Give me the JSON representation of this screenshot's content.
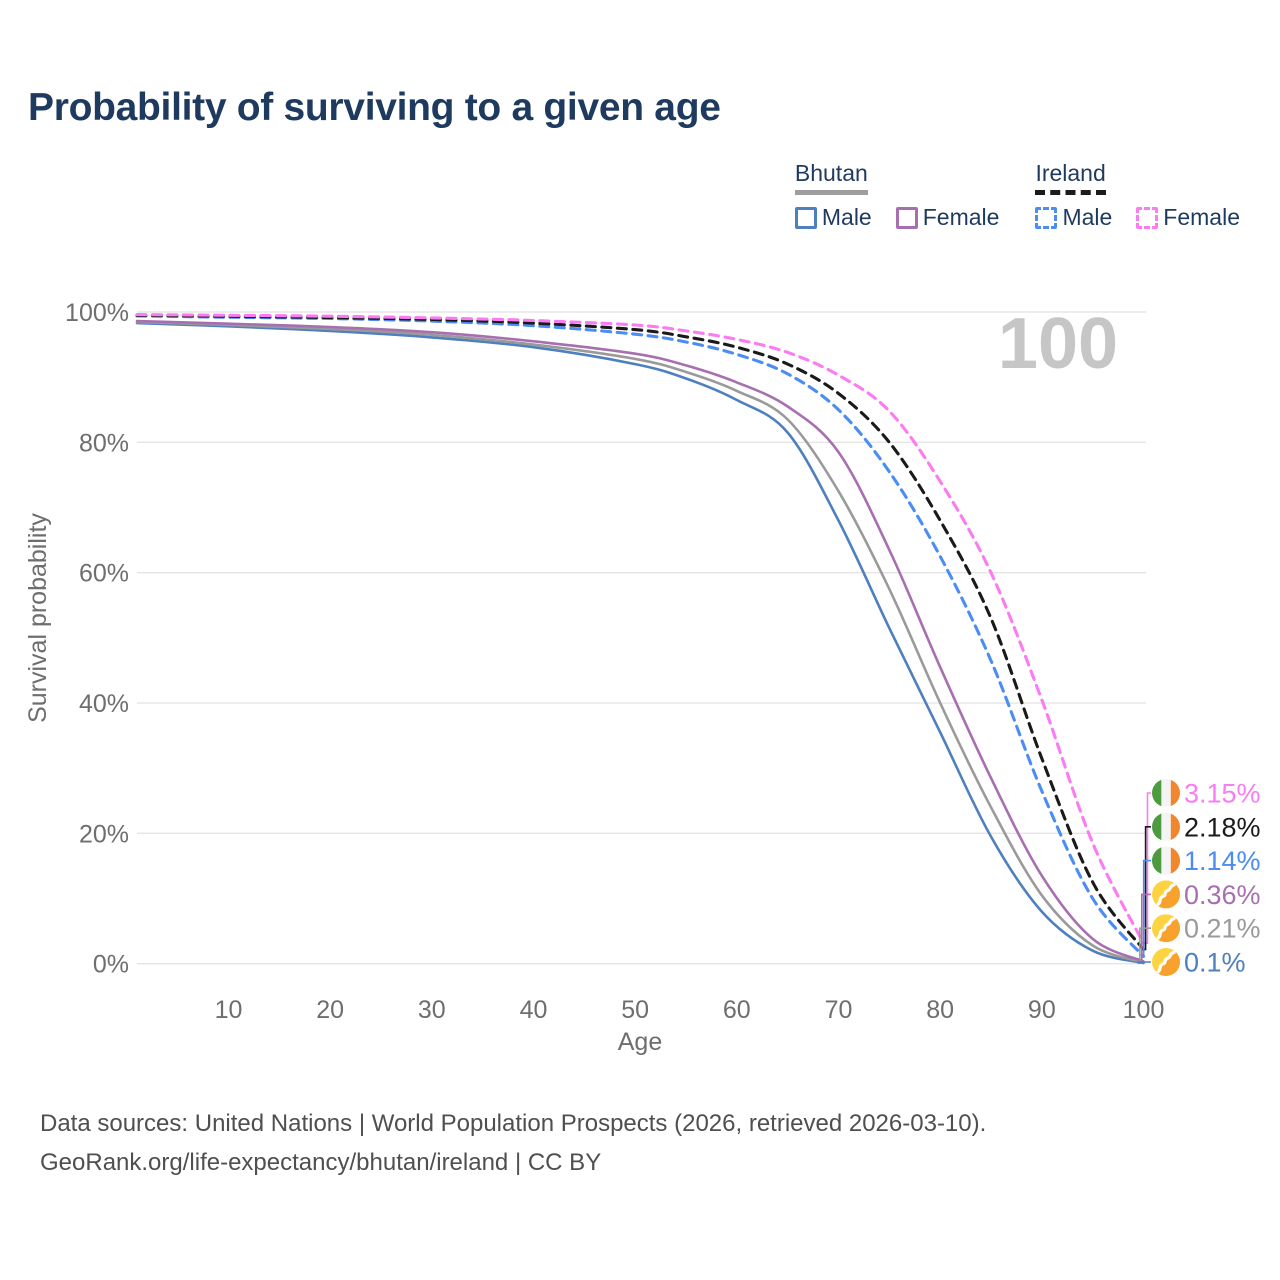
{
  "title": "Probability of surviving to a given age",
  "watermark": "100",
  "legend": {
    "groups": [
      {
        "label": "Bhutan",
        "line_color": "#9e9e9e",
        "line_style": "solid",
        "items": [
          {
            "label": "Male",
            "color": "#4e7fbe",
            "style": "solid"
          },
          {
            "label": "Female",
            "color": "#a86fb0",
            "style": "solid"
          }
        ]
      },
      {
        "label": "Ireland",
        "line_color": "#1c1c1c",
        "line_style": "dashed",
        "items": [
          {
            "label": "Male",
            "color": "#4b8cf5",
            "style": "dashed"
          },
          {
            "label": "Female",
            "color": "#fb7bf2",
            "style": "dashed"
          }
        ]
      }
    ]
  },
  "footer": {
    "line1": "Data sources: United Nations | World Population Prospects (2026, retrieved 2026-03-10).",
    "line2": "GeoRank.org/life-expectancy/bhutan/ireland | CC BY"
  },
  "chart_data": {
    "type": "line",
    "title": "Probability of surviving to a given age",
    "xlabel": "Age",
    "ylabel": "Survival probability",
    "xlim": [
      0,
      100
    ],
    "ylim": [
      0,
      100
    ],
    "grid": "horizontal",
    "x_ticks": [
      10,
      20,
      30,
      40,
      50,
      60,
      70,
      80,
      90,
      100
    ],
    "y_ticks": [
      0,
      20,
      40,
      60,
      80,
      100
    ],
    "y_tick_suffix": "%",
    "watermark": "100",
    "ages": [
      1,
      10,
      20,
      30,
      40,
      50,
      55,
      60,
      65,
      70,
      75,
      80,
      85,
      90,
      95,
      100
    ],
    "series": [
      {
        "name": "Bhutan Male",
        "country": "Bhutan",
        "sex": "Male",
        "flag": "bhutan-flag-icon",
        "color": "#4e7fbe",
        "line_style": "solid",
        "end_label": "0.1%",
        "values": [
          98.3,
          97.8,
          97.1,
          96.1,
          94.6,
          92.0,
          89.8,
          86.5,
          81.5,
          68.0,
          51.5,
          35.5,
          19.5,
          8.0,
          2.0,
          0.1
        ]
      },
      {
        "name": "Bhutan Both sexes",
        "country": "Bhutan",
        "sex": "Both",
        "flag": "bhutan-flag-icon",
        "color": "#9a9a9a",
        "line_style": "solid",
        "end_label": "0.21%",
        "values": [
          98.45,
          98.0,
          97.4,
          96.5,
          95.0,
          92.8,
          90.8,
          87.9,
          83.5,
          72.5,
          57.5,
          40.0,
          24.0,
          10.5,
          2.8,
          0.21
        ]
      },
      {
        "name": "Bhutan Female",
        "country": "Bhutan",
        "sex": "Female",
        "flag": "bhutan-flag-icon",
        "color": "#a86fb0",
        "line_style": "solid",
        "end_label": "0.36%",
        "values": [
          98.6,
          98.2,
          97.7,
          96.9,
          95.5,
          93.6,
          91.8,
          89.2,
          85.5,
          78.5,
          63.5,
          45.5,
          28.5,
          13.5,
          3.8,
          0.36
        ]
      },
      {
        "name": "Ireland Male",
        "country": "Ireland",
        "sex": "Male",
        "flag": "ireland-flag-icon",
        "color": "#4b8cf5",
        "line_style": "dashed",
        "end_label": "1.14%",
        "values": [
          99.4,
          99.2,
          99.0,
          98.6,
          97.9,
          96.6,
          95.4,
          93.5,
          90.5,
          85.0,
          75.5,
          62.5,
          46.5,
          26.5,
          10.0,
          1.14
        ]
      },
      {
        "name": "Ireland Both sexes",
        "country": "Ireland",
        "sex": "Both",
        "flag": "ireland-flag-icon",
        "color": "#1a1a1a",
        "line_style": "dashed",
        "end_label": "2.18%",
        "values": [
          99.5,
          99.35,
          99.15,
          98.85,
          98.3,
          97.3,
          96.2,
          94.6,
          92.0,
          87.5,
          80.0,
          68.0,
          53.0,
          31.5,
          12.5,
          2.18
        ]
      },
      {
        "name": "Ireland Female",
        "country": "Ireland",
        "sex": "Female",
        "flag": "ireland-flag-icon",
        "color": "#fb7bf2",
        "line_style": "dashed",
        "end_label": "3.15%",
        "values": [
          99.6,
          99.5,
          99.35,
          99.1,
          98.7,
          98.0,
          97.1,
          95.8,
          93.8,
          90.3,
          84.8,
          74.0,
          60.0,
          40.5,
          18.5,
          3.15
        ]
      }
    ],
    "flag_colors": {
      "ireland": {
        "green": "#4e9b3f",
        "white": "#f4f4f4",
        "orange": "#f0862d"
      },
      "bhutan": {
        "yellow": "#fed341",
        "orange": "#f8a12c",
        "dragon": "#ffffff"
      }
    },
    "style": {
      "grid_color": "#e5e5e5",
      "tick_color": "#6e6e6e",
      "watermark_color": "#c6c6c6"
    }
  }
}
